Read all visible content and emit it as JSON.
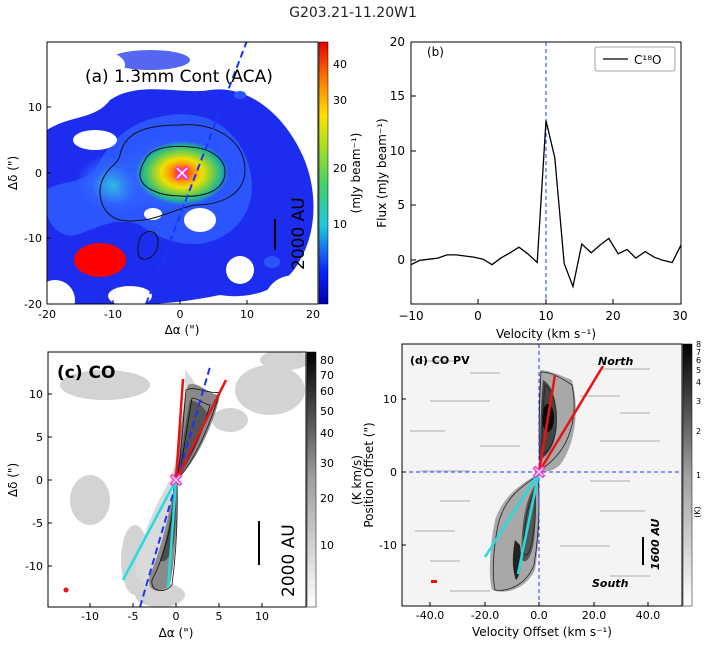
{
  "figure_title": "G203.21-11.20W1",
  "chart_data": [
    {
      "panel": "a",
      "type": "heatmap",
      "label": "(a) 1.3mm Cont (ACA)",
      "xlabel": "Δα (\")",
      "ylabel": "Δδ (\")",
      "xlim": [
        -20,
        21
      ],
      "ylim": [
        -20,
        20
      ],
      "xticks": [
        "-20",
        "-10",
        "0",
        "10",
        "20"
      ],
      "yticks": [
        "-20",
        "-10",
        "0",
        "10"
      ],
      "colorbar": {
        "label": "(mJy beam⁻¹)",
        "range": [
          0,
          45
        ],
        "ticks": [
          "10",
          "20",
          "30",
          "40"
        ]
      },
      "scalebar": "2000 AU",
      "outflow_axis": [
        [
          -6,
          -20
        ],
        [
          8,
          20
        ]
      ],
      "source": [
        0,
        0
      ],
      "colors": {
        "background": "#0b16d8",
        "axis": "#1a33ff",
        "beam": "#ff0000",
        "marker": "#ff33cc"
      }
    },
    {
      "panel": "b",
      "type": "line",
      "label": "(b)",
      "xlabel": "Velocity  (km s⁻¹)",
      "ylabel": "Flux (mJy beam⁻¹)",
      "xlim": [
        -10,
        30
      ],
      "ylim": [
        -4,
        20
      ],
      "xticks": [
        "−10",
        "0",
        "10",
        "20",
        "30"
      ],
      "yticks": [
        "0",
        "5",
        "10",
        "15",
        "20"
      ],
      "legend": "C¹⁸O",
      "vline": 10,
      "series": [
        {
          "name": "C18O",
          "x": [
            -10,
            -8.7,
            -7.3,
            -6,
            -4.7,
            -3.3,
            -2,
            -0.7,
            0.7,
            2,
            3.3,
            4.7,
            6,
            7.3,
            8.7,
            10,
            11.3,
            12.7,
            14,
            15.3,
            16.7,
            18,
            19.3,
            20.7,
            22,
            23.3,
            24.7,
            26,
            27.3,
            28.7,
            30
          ],
          "y": [
            -0.4,
            0,
            0.1,
            0.2,
            0.5,
            0.5,
            0.4,
            0.3,
            0.1,
            -0.4,
            0.2,
            0.7,
            1.2,
            0.6,
            -0.2,
            12.8,
            9.4,
            -0.3,
            -2.4,
            1.5,
            0.7,
            1.4,
            2,
            0.6,
            1,
            0.2,
            0.8,
            0.3,
            0,
            -0.2,
            1.4
          ]
        }
      ]
    },
    {
      "panel": "c",
      "type": "heatmap",
      "label": "(c) CO",
      "xlabel": "Δα (\")",
      "ylabel": "Δδ (\")",
      "xlim": [
        -15,
        15
      ],
      "ylim": [
        -15,
        15
      ],
      "xticks": [
        "-10",
        "-5",
        "0",
        "5",
        "10"
      ],
      "yticks": [
        "-10",
        "-5",
        "0",
        "5",
        "10"
      ],
      "colorbar": {
        "label": "(K km/s)",
        "ticks": [
          "10",
          "20",
          "30",
          "40",
          "50",
          "60",
          "70",
          "80"
        ]
      },
      "scalebar": "2000 AU",
      "colors": {
        "red": "#ee1111",
        "blue": "#22dddd",
        "axis": "#1a33ff",
        "marker": "#ff33cc"
      }
    },
    {
      "panel": "d",
      "type": "heatmap",
      "label": "(d) CO PV",
      "xlabel": "Velocity Offset (km s⁻¹)",
      "ylabel": "Position Offset (\")",
      "xlim": [
        -50,
        50
      ],
      "ylim": [
        -18,
        18
      ],
      "xticks": [
        "-40.0",
        "-20.0",
        "0.0",
        "20.0",
        "40.0"
      ],
      "yticks": [
        "-10",
        "0",
        "10"
      ],
      "colorbar": {
        "label": "(K)",
        "ticks": [
          "1",
          "2",
          "3",
          "4",
          "5",
          "6",
          "7",
          "8"
        ]
      },
      "scalebar": "1600 AU",
      "north_label": "North",
      "south_label": "South"
    }
  ]
}
